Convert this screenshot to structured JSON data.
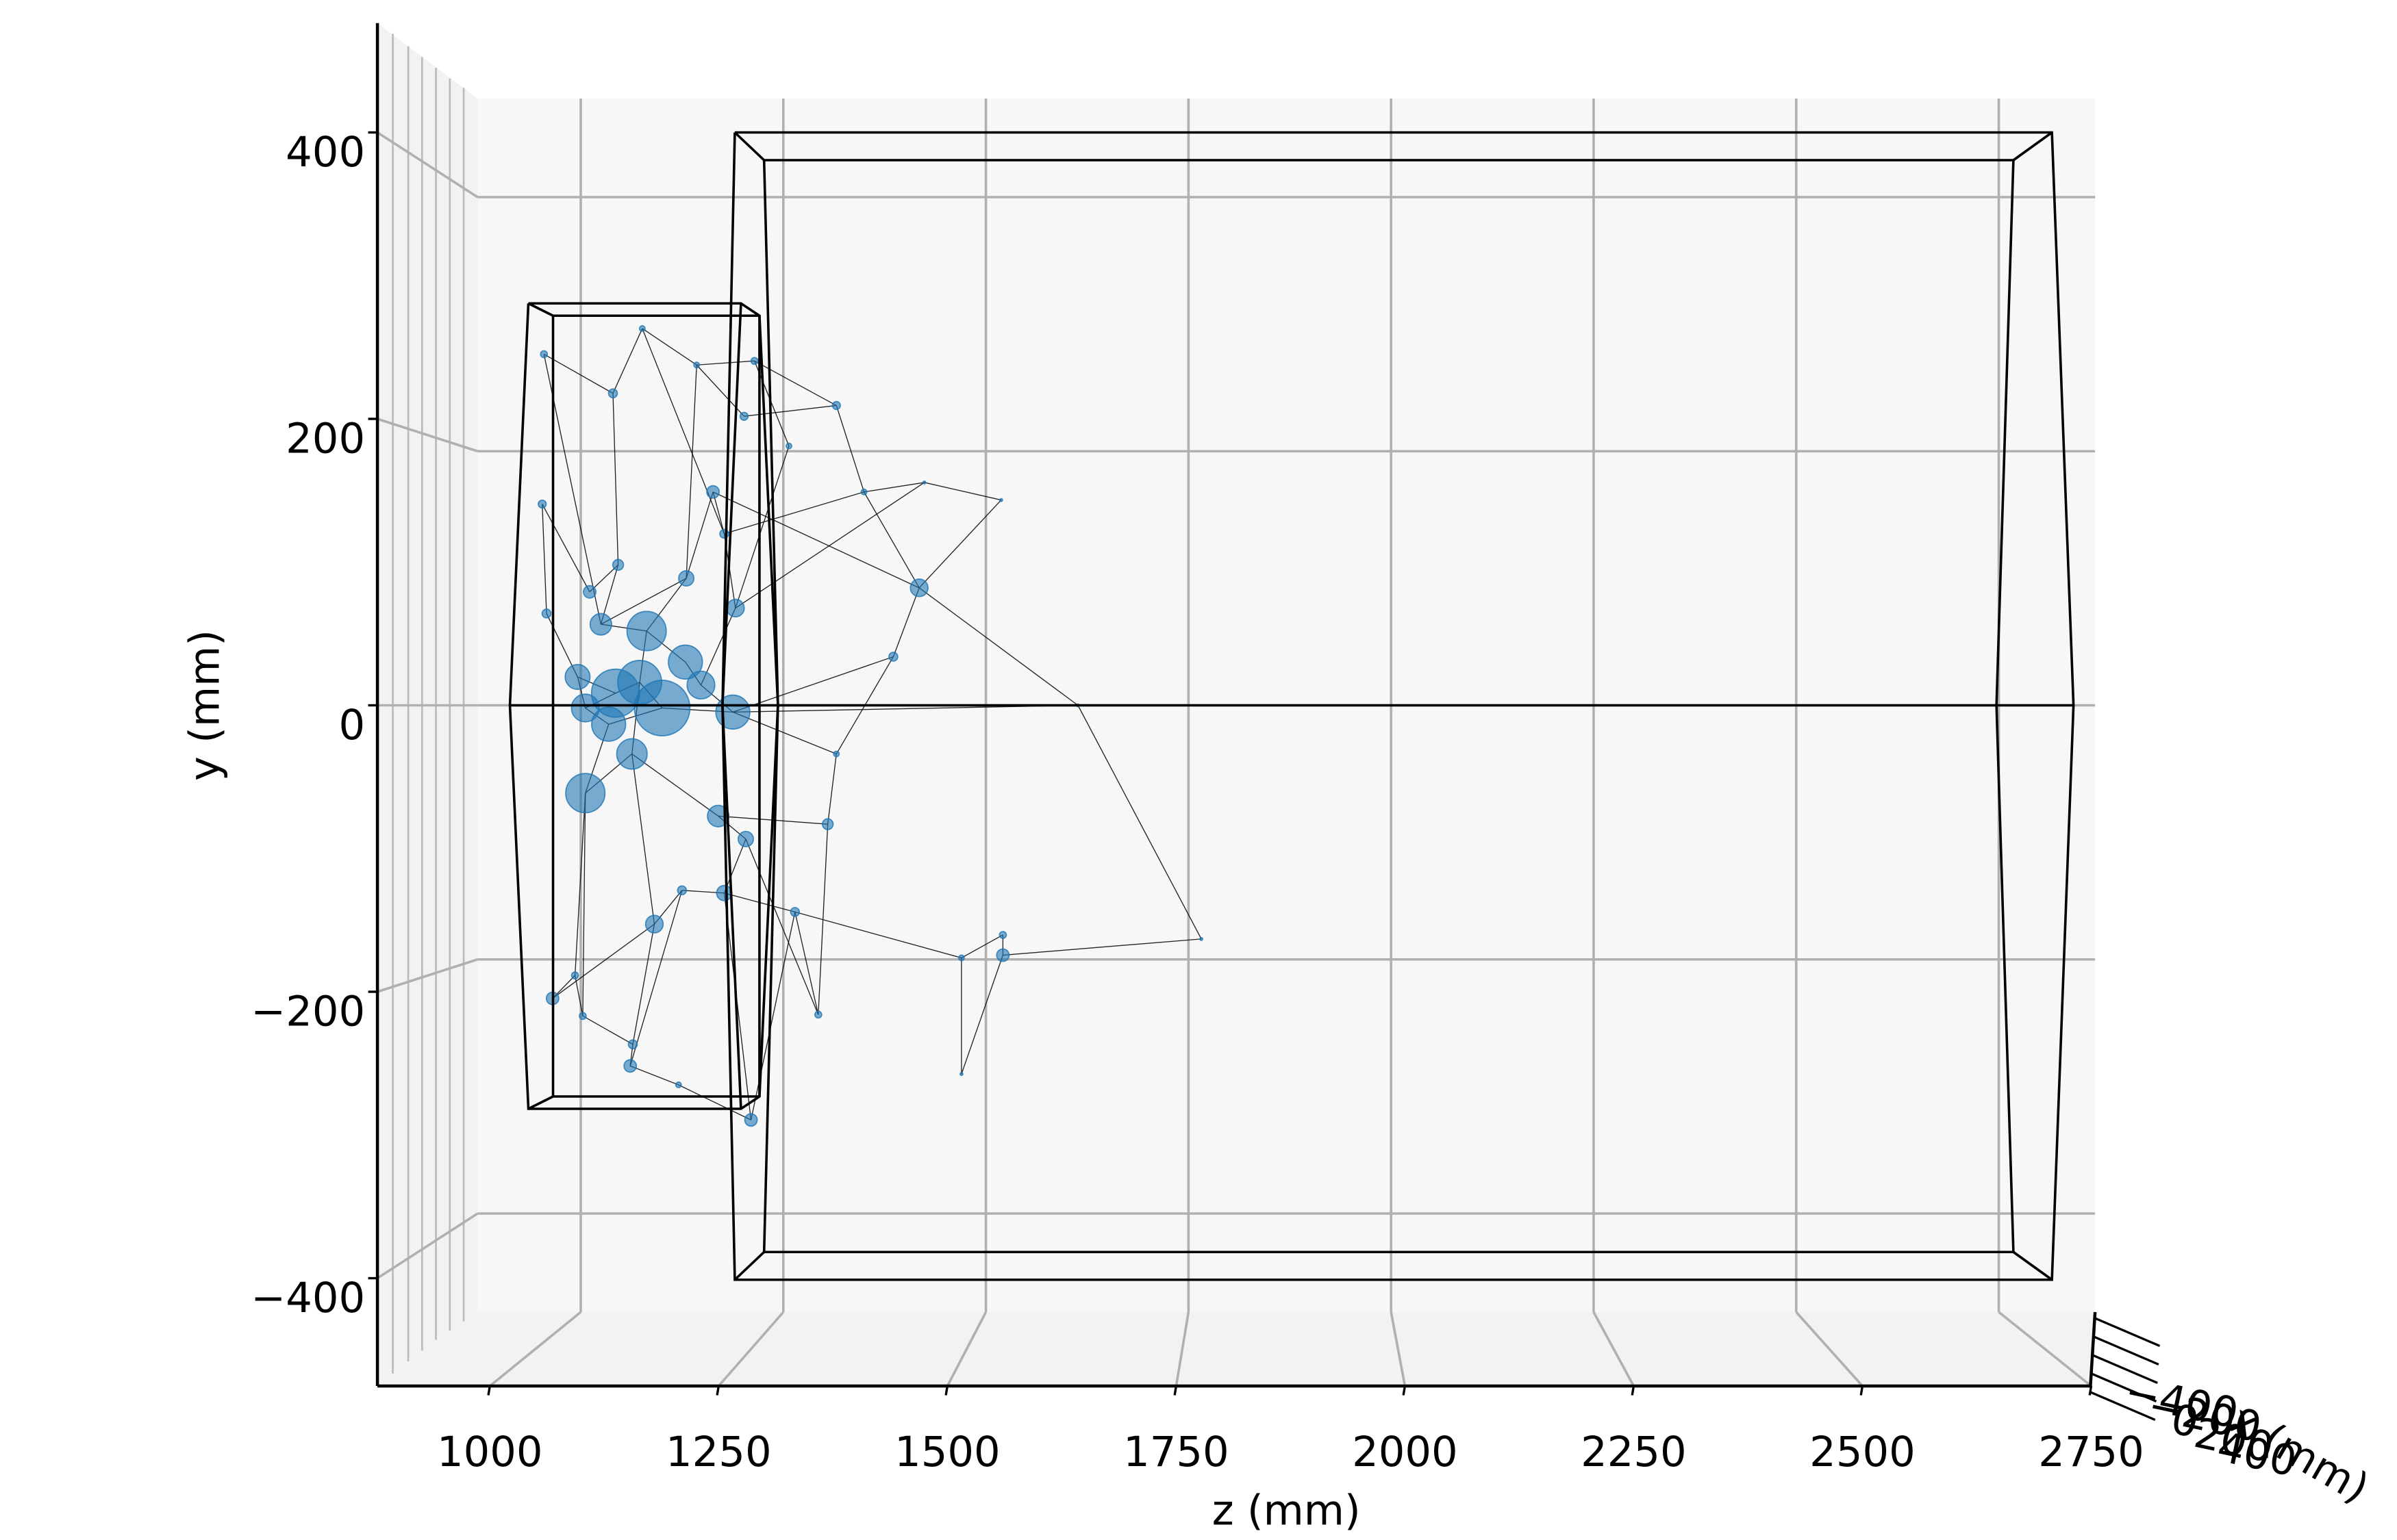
{
  "chart_data": {
    "type": "scatter3d",
    "xlabel": "z (mm)",
    "ylabel": "y (mm)",
    "zlabel": "x (mm)",
    "xlim": [
      875,
      2800
    ],
    "ylim": [
      -470,
      470
    ],
    "zlim": [
      -400,
      400
    ],
    "xticks": [
      1000,
      1250,
      1500,
      1750,
      2000,
      2250,
      2500,
      2750
    ],
    "yticks": [
      {
        "value": -400,
        "label": "−400"
      },
      {
        "value": -200,
        "label": "−200"
      },
      0,
      200,
      400
    ],
    "zticks": [
      {
        "value": -400,
        "label": "−400"
      },
      {
        "value": -200,
        "label": "−200"
      },
      0,
      200,
      400
    ],
    "grid": true,
    "color": "#1f77b4",
    "x": [
      1010,
      1090,
      1124,
      1187,
      1254,
      1349,
      1381,
      1008,
      1206,
      1219,
      1096,
      1175,
      1445,
      1063,
      1415,
      1129,
      1093,
      1147,
      1058,
      1229,
      1058,
      1212,
      1244,
      1339,
      1349,
      1301,
      1219,
      1138,
      1170,
      1542,
      1542,
      1494,
      1020,
      1046,
      1055,
      1113,
      1110,
      1166,
      1250,
      1328,
      1121,
      1174,
      1085,
      1112,
      1049,
      1192,
      1076,
      1013,
      1232,
      1242,
      1294,
      1629,
      1772,
      1494,
      1540,
      1451
    ],
    "y": [
      260,
      231,
      279,
      252,
      255,
      222,
      158,
      149,
      158,
      127,
      104,
      94,
      87,
      84,
      36,
      55,
      9,
      -2,
      -2,
      -5,
      -65,
      -82,
      -99,
      -88,
      -36,
      -153,
      -139,
      -162,
      -137,
      -170,
      -185,
      -187,
      -217,
      -200,
      -230,
      -251,
      -267,
      -281,
      -307,
      -229,
      17,
      32,
      -14,
      -36,
      21,
      15,
      60,
      68,
      72,
      214,
      192,
      0,
      -173,
      -273,
      152,
      165
    ],
    "sizes": [
      6,
      10,
      4,
      4,
      6,
      8,
      4,
      8,
      20,
      10,
      15,
      30,
      40,
      20,
      10,
      200,
      300,
      400,
      100,
      150,
      200,
      60,
      30,
      15,
      4,
      10,
      30,
      40,
      10,
      6,
      20,
      4,
      20,
      6,
      6,
      10,
      20,
      4,
      20,
      6,
      250,
      150,
      150,
      120,
      80,
      100,
      60,
      10,
      40,
      8,
      4,
      1,
      1,
      1,
      1,
      1
    ],
    "edges": [
      [
        0,
        1
      ],
      [
        1,
        2
      ],
      [
        2,
        3
      ],
      [
        3,
        4
      ],
      [
        4,
        5
      ],
      [
        5,
        49
      ],
      [
        1,
        10
      ],
      [
        10,
        13
      ],
      [
        13,
        7
      ],
      [
        7,
        47
      ],
      [
        47,
        44
      ],
      [
        44,
        18
      ],
      [
        18,
        16
      ],
      [
        16,
        40
      ],
      [
        40,
        15
      ],
      [
        15,
        11
      ],
      [
        11,
        8
      ],
      [
        8,
        9
      ],
      [
        9,
        48
      ],
      [
        48,
        45
      ],
      [
        45,
        19
      ],
      [
        19,
        17
      ],
      [
        17,
        42
      ],
      [
        42,
        20
      ],
      [
        20,
        43
      ],
      [
        43,
        21
      ],
      [
        21,
        22
      ],
      [
        22,
        26
      ],
      [
        26,
        28
      ],
      [
        28,
        27
      ],
      [
        27,
        35
      ],
      [
        35,
        36
      ],
      [
        36,
        37
      ],
      [
        37,
        38
      ],
      [
        38,
        25
      ],
      [
        25,
        39
      ],
      [
        39,
        23
      ],
      [
        23,
        24
      ],
      [
        24,
        14
      ],
      [
        14,
        12
      ],
      [
        12,
        6
      ],
      [
        6,
        55
      ],
      [
        55,
        54
      ],
      [
        54,
        12
      ],
      [
        12,
        51
      ],
      [
        51,
        52
      ],
      [
        52,
        30
      ],
      [
        30,
        29
      ],
      [
        29,
        31
      ],
      [
        31,
        53
      ],
      [
        53,
        30
      ],
      [
        31,
        25
      ],
      [
        19,
        51
      ],
      [
        19,
        14
      ],
      [
        4,
        50
      ],
      [
        50,
        48
      ],
      [
        49,
        3
      ],
      [
        6,
        9
      ],
      [
        5,
        6
      ],
      [
        8,
        12
      ],
      [
        11,
        46
      ],
      [
        46,
        10
      ],
      [
        32,
        33
      ],
      [
        33,
        34
      ],
      [
        34,
        35
      ],
      [
        20,
        33
      ],
      [
        27,
        32
      ],
      [
        26,
        25
      ],
      [
        21,
        23
      ],
      [
        24,
        19
      ],
      [
        45,
        41
      ],
      [
        41,
        15
      ],
      [
        40,
        43
      ],
      [
        17,
        40
      ],
      [
        16,
        44
      ],
      [
        42,
        18
      ],
      [
        11,
        3
      ],
      [
        9,
        2
      ],
      [
        48,
        55
      ],
      [
        22,
        39
      ],
      [
        26,
        38
      ],
      [
        0,
        46
      ],
      [
        28,
        36
      ],
      [
        43,
        27
      ],
      [
        20,
        34
      ],
      [
        15,
        46
      ]
    ]
  }
}
